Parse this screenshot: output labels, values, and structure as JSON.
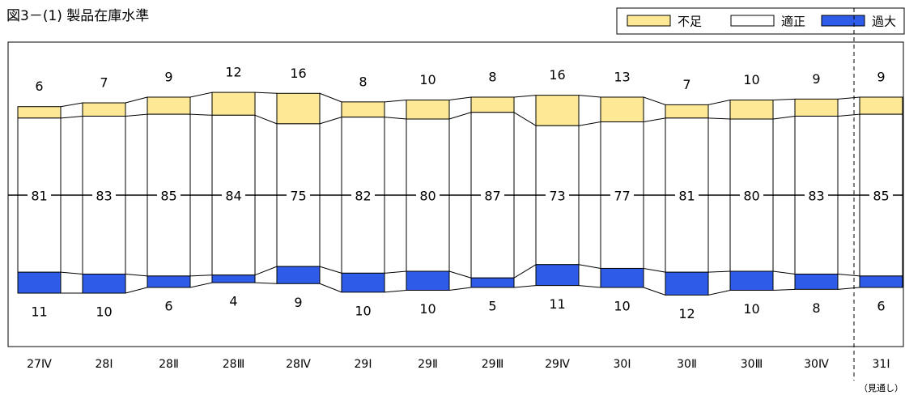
{
  "chart_data": {
    "type": "bar",
    "stacked": true,
    "baseline": "centered",
    "title": "図3－(1) 製品在庫水準",
    "categories": [
      "27Ⅳ",
      "28Ⅰ",
      "28Ⅱ",
      "28Ⅲ",
      "28Ⅳ",
      "29Ⅰ",
      "29Ⅱ",
      "29Ⅲ",
      "29Ⅳ",
      "30Ⅰ",
      "30Ⅱ",
      "30Ⅲ",
      "30Ⅳ",
      "31Ⅰ"
    ],
    "series": [
      {
        "name": "不足",
        "color": "#fde895",
        "values": [
          6,
          7,
          9,
          12,
          16,
          8,
          10,
          8,
          16,
          13,
          7,
          10,
          9,
          9
        ]
      },
      {
        "name": "適正",
        "color": "#ffffff",
        "values": [
          81,
          83,
          85,
          84,
          75,
          82,
          80,
          87,
          73,
          77,
          81,
          80,
          83,
          85
        ]
      },
      {
        "name": "過大",
        "color": "#2e5ce8",
        "values": [
          11,
          10,
          6,
          4,
          9,
          10,
          10,
          5,
          11,
          10,
          12,
          10,
          8,
          6
        ]
      }
    ],
    "annotation": "（見通し）"
  }
}
